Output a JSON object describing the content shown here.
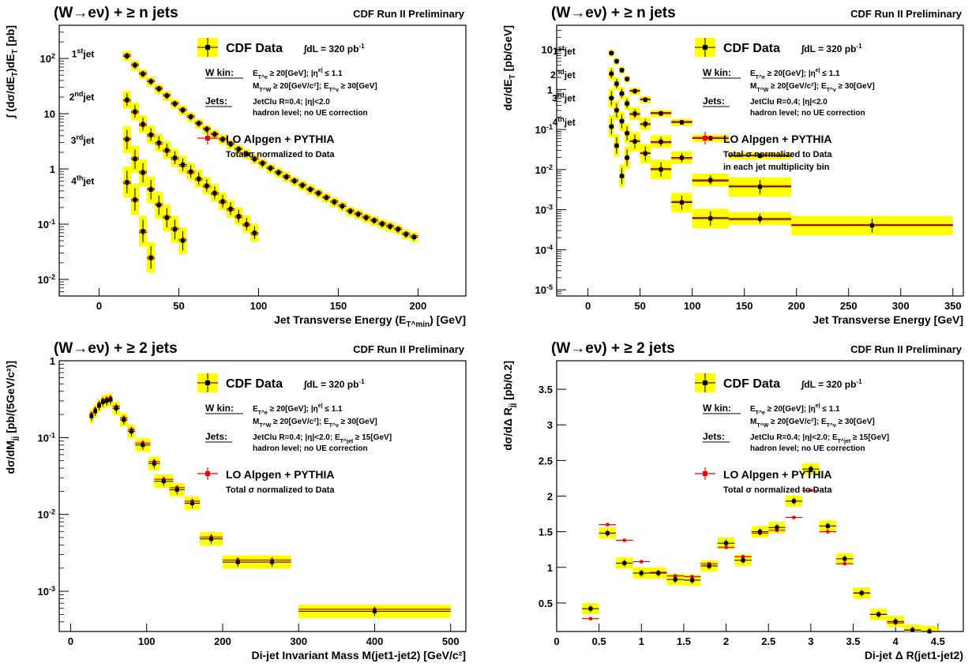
{
  "colors": {
    "band": "#ffff00",
    "data": "#000000",
    "mc": "#ee0000",
    "axis": "#000000"
  },
  "chart_data": [
    {
      "type": "scatter",
      "title": "(W→eν) + ≥ n jets",
      "header_right": "CDF Run II Preliminary",
      "xlabel": "Jet Transverse Energy (E_T^min) [GeV]",
      "ylabel": "∫ (dσ/dE_T)dE_T [pb]",
      "xlim": [
        -25,
        230
      ],
      "ylim": [
        0.005,
        400
      ],
      "log_y": true,
      "xticks": [
        0,
        50,
        100,
        150,
        200
      ],
      "yticks": [
        0.01,
        0.1,
        1,
        10,
        100
      ],
      "ytick_labels": [
        "10^-2",
        "10^-1",
        "1",
        "10",
        "10^2"
      ],
      "legend": {
        "data_label": "CDF Data",
        "lumi": "∫dL = 320 pb^-1",
        "wkin_title": "W kin:",
        "wkin_1": "E_T^e ≥ 20[GeV]; |η^e| ≤ 1.1",
        "wkin_2": "M_T^W ≥ 20[GeV/c²]; E_T^ν ≥ 30[GeV]",
        "jets_title": "Jets:",
        "jets_1": "JetClu R=0.4; |η|<2.0",
        "jets_2": "hadron level; no UE correction",
        "mc_label": "LO Alpgen + PYTHIA",
        "mc_note": "Total σ normalized to Data"
      },
      "annotations": [
        {
          "text": "1st jet",
          "x": -3,
          "y": 120
        },
        {
          "text": "2nd jet",
          "x": -3,
          "y": 20
        },
        {
          "text": "3rd jet",
          "x": -3,
          "y": 3.3
        },
        {
          "text": "4th jet",
          "x": -3,
          "y": 0.6
        }
      ],
      "series": [
        {
          "name": "1st jet",
          "x": [
            17.5,
            22.5,
            27.5,
            32.5,
            37.5,
            42.5,
            47.5,
            52.5,
            57.5,
            62.5,
            67.5,
            72.5,
            77.5,
            82.5,
            87.5,
            92.5,
            97.5,
            102.5,
            107.5,
            112.5,
            117.5,
            122.5,
            127.5,
            132.5,
            137.5,
            142.5,
            147.5,
            152.5,
            157.5,
            162.5,
            167.5,
            172.5,
            177.5,
            182.5,
            187.5,
            192.5,
            197.5
          ],
          "y": [
            110,
            75,
            52,
            38,
            28,
            21,
            15,
            11.5,
            8.7,
            6.6,
            5.2,
            4.2,
            3.4,
            2.8,
            2.25,
            1.85,
            1.5,
            1.25,
            1.02,
            0.85,
            0.71,
            0.6,
            0.5,
            0.42,
            0.36,
            0.3,
            0.25,
            0.21,
            0.17,
            0.15,
            0.13,
            0.115,
            0.1,
            0.09,
            0.08,
            0.065,
            0.058
          ],
          "band": 0.15
        },
        {
          "name": "2nd jet",
          "x": [
            17.5,
            22.5,
            27.5,
            32.5,
            37.5,
            42.5,
            47.5,
            52.5,
            57.5,
            62.5,
            67.5,
            72.5,
            77.5,
            82.5,
            87.5,
            92.5,
            97.5
          ],
          "y": [
            18,
            11,
            6.5,
            4.2,
            3.0,
            2.2,
            1.6,
            1.2,
            0.9,
            0.67,
            0.5,
            0.37,
            0.26,
            0.19,
            0.14,
            0.1,
            0.07
          ],
          "band": 0.3
        },
        {
          "name": "3rd jet",
          "x": [
            17.5,
            22.5,
            27.5,
            32.5,
            37.5,
            42.5,
            47.5,
            52.5
          ],
          "y": [
            3.4,
            1.5,
            0.85,
            0.42,
            0.22,
            0.13,
            0.08,
            0.05
          ],
          "band": 0.5
        },
        {
          "name": "4th jet",
          "x": [
            17.5,
            22.5,
            27.5,
            32.5
          ],
          "y": [
            0.58,
            0.28,
            0.075,
            0.025
          ],
          "band": 0.6
        }
      ]
    },
    {
      "type": "scatter",
      "title": "(W→eν) + ≥ n jets",
      "header_right": "CDF Run II Preliminary",
      "xlabel": "Jet Transverse Energy [GeV]",
      "ylabel": "dσ/dE_T [pb/GeV]",
      "xlim": [
        -30,
        360
      ],
      "ylim": [
        7e-06,
        40
      ],
      "log_y": true,
      "xticks": [
        0,
        50,
        100,
        150,
        200,
        250,
        300,
        350
      ],
      "yticks": [
        1e-05,
        0.0001,
        0.001,
        0.01,
        0.1,
        1,
        10
      ],
      "ytick_labels": [
        "10^-5",
        "10^-4",
        "10^-3",
        "10^-2",
        "10^-1",
        "1",
        "10"
      ],
      "legend": {
        "data_label": "CDF Data",
        "lumi": "∫dL = 320 pb^-1",
        "wkin_title": "W kin:",
        "wkin_1": "E_T^e ≥ 20[GeV]; |η^e| ≤ 1.1",
        "wkin_2": "M_T^W ≥ 20[GeV/c²]; E_T^ν ≥ 30[GeV]",
        "jets_title": "Jets:",
        "jets_1": "JetClu R=0.4; |η|<2.0",
        "jets_2": "hadron level; no UE correction",
        "mc_label": "LO Alpgen + PYTHIA",
        "mc_note": "Total σ normalized to Data",
        "mc_note2": "in each jet multiplicity bin"
      },
      "annotations": [
        {
          "text": "1st jet",
          "x": -12,
          "y": 9
        },
        {
          "text": "2nd jet",
          "x": -12,
          "y": 2.3
        },
        {
          "text": "3rd jet",
          "x": -12,
          "y": 0.6
        },
        {
          "text": "4th jet",
          "x": -12,
          "y": 0.15
        }
      ],
      "series": [
        {
          "name": "1st jet",
          "x": [
            22.5,
            27.5,
            32.5,
            37.5,
            45,
            55,
            70,
            90,
            117.5,
            165
          ],
          "xerr": [
            2.5,
            2.5,
            2.5,
            2.5,
            5,
            5,
            10,
            10,
            17.5,
            30
          ],
          "y": [
            8,
            5,
            3,
            1.8,
            0.9,
            0.55,
            0.25,
            0.15,
            0.06,
            0.022
          ],
          "band": 0.15
        },
        {
          "name": "2nd jet",
          "x": [
            22.5,
            27.5,
            32.5,
            37.5,
            45,
            55,
            70,
            90,
            117.5,
            165
          ],
          "xerr": [
            2.5,
            2.5,
            2.5,
            2.5,
            5,
            5,
            10,
            10,
            17.5,
            30
          ],
          "y": [
            2.5,
            1.4,
            0.8,
            0.45,
            0.25,
            0.14,
            0.05,
            0.02,
            0.0055,
            0.0006
          ],
          "band": 0.3
        },
        {
          "name": "3rd jet",
          "x": [
            22.5,
            27.5,
            32.5,
            37.5,
            45,
            55,
            70,
            90,
            117.5,
            165,
            272.5
          ],
          "xerr": [
            2.5,
            2.5,
            2.5,
            2.5,
            5,
            5,
            10,
            10,
            17.5,
            30,
            77.5
          ],
          "y": [
            0.6,
            0.3,
            0.16,
            0.08,
            0.05,
            0.025,
            0.01,
            0.0015,
            0.0006,
            0.0037,
            0.0004
          ],
          "band": 0.5
        },
        {
          "name": "4th jet",
          "x": [
            22.5,
            27.5,
            32.5,
            37.5
          ],
          "xerr": [
            2.5,
            2.5,
            2.5,
            2.5
          ],
          "y": [
            0.12,
            0.04,
            0.007,
            0.02
          ],
          "band": 0.6
        }
      ]
    },
    {
      "type": "scatter",
      "title": "(W→eν) + ≥ 2 jets",
      "header_right": "CDF Run II Preliminary",
      "xlabel": "Di-jet Invariant Mass M(jet1-jet2) [GeV/c²]",
      "ylabel": "dσ/dM_jj [pb/(5GeV/c²)]",
      "xlim": [
        -15,
        520
      ],
      "ylim": [
        0.0003,
        1
      ],
      "log_y": true,
      "xticks": [
        0,
        100,
        200,
        300,
        400,
        500
      ],
      "yticks": [
        0.001,
        0.01,
        0.1,
        1
      ],
      "ytick_labels": [
        "10^-3",
        "10^-2",
        "10^-1",
        "1"
      ],
      "legend": {
        "data_label": "CDF Data",
        "lumi": "∫dL = 320 pb^-1",
        "wkin_title": "W kin:",
        "wkin_1": "E_T^e ≥ 20[GeV]; |η^e| ≤ 1.1",
        "wkin_2": "M_T^W ≥ 20[GeV/c²]; E_T^ν ≥ 30[GeV]",
        "jets_title": "Jets:",
        "jets_1": "JetClu R=0.4; |η|<2.0; E_T^jet ≥ 15[GeV]",
        "jets_2": "hadron level; no UE correction",
        "mc_label": "LO Alpgen + PYTHIA",
        "mc_note": "Total σ normalized to Data"
      },
      "series": [
        {
          "name": "M_jj",
          "x": [
            27.5,
            32.5,
            37.5,
            42.5,
            47.5,
            52.5,
            60,
            70,
            80,
            95,
            110,
            122.5,
            140,
            160,
            185,
            220,
            265,
            400
          ],
          "xerr": [
            2.5,
            2.5,
            2.5,
            2.5,
            2.5,
            2.5,
            5,
            5,
            5,
            10,
            7.5,
            12.5,
            10,
            10,
            15,
            20,
            25,
            100
          ],
          "y": [
            0.19,
            0.22,
            0.26,
            0.29,
            0.3,
            0.31,
            0.24,
            0.17,
            0.12,
            0.08,
            0.046,
            0.027,
            0.021,
            0.014,
            0.0048,
            0.0024,
            0.0024,
            0.00055
          ],
          "band": 0.15
        }
      ]
    },
    {
      "type": "scatter",
      "title": "(W→eν) + ≥ 2 jets",
      "header_right": "CDF Run II Preliminary",
      "xlabel": "Di-jet Δ R(jet1-jet2)",
      "ylabel": "dσ/dΔ R_jj [pb/0.2]",
      "xlim": [
        0,
        4.8
      ],
      "ylim": [
        0.1,
        3.9
      ],
      "log_y": false,
      "xticks": [
        0,
        0.5,
        1,
        1.5,
        2,
        2.5,
        3,
        3.5,
        4,
        4.5
      ],
      "yticks": [
        0.5,
        1,
        1.5,
        2,
        2.5,
        3,
        3.5
      ],
      "ytick_labels": [
        "0.5",
        "1",
        "1.5",
        "2",
        "2.5",
        "3",
        "3.5"
      ],
      "legend": {
        "data_label": "CDF Data",
        "lumi": "∫dL = 320 pb^-1",
        "wkin_title": "W kin:",
        "wkin_1": "E_T^e ≥ 20[GeV]; |η^e| ≤ 1.1",
        "wkin_2": "M_T^W ≥ 20[GeV/c²]; E_T^ν ≥ 30[GeV]",
        "jets_title": "Jets:",
        "jets_1": "JetClu R=0.4; |η|<2.0; E_T^jet ≥ 15[GeV]",
        "jets_2": "hadron level; no UE correction",
        "mc_label": "LO Alpgen + PYTHIA",
        "mc_note": "Total σ normalized to Data"
      },
      "series": [
        {
          "name": "Δ R",
          "x": [
            0.4,
            0.6,
            0.8,
            1.0,
            1.2,
            1.4,
            1.6,
            1.8,
            2.0,
            2.2,
            2.4,
            2.6,
            2.8,
            3.0,
            3.2,
            3.4,
            3.6,
            3.8,
            4.0,
            4.2,
            4.4
          ],
          "xerr": [
            0.1,
            0.1,
            0.1,
            0.1,
            0.1,
            0.1,
            0.1,
            0.1,
            0.1,
            0.1,
            0.1,
            0.1,
            0.1,
            0.1,
            0.1,
            0.1,
            0.1,
            0.1,
            0.1,
            0.1,
            0.1
          ],
          "y": [
            0.42,
            1.48,
            1.06,
            0.92,
            0.92,
            0.83,
            0.82,
            1.02,
            1.34,
            1.1,
            1.5,
            1.56,
            1.93,
            2.38,
            1.58,
            1.12,
            0.64,
            0.34,
            0.24,
            0.12,
            0.1
          ],
          "mc": [
            0.28,
            1.6,
            1.38,
            1.08,
            0.93,
            0.88,
            0.87,
            1.05,
            1.28,
            1.15,
            1.48,
            1.52,
            1.7,
            2.08,
            1.5,
            1.05,
            0.64,
            0.34,
            0.22,
            0.12,
            0.1
          ],
          "band": 0.08
        }
      ]
    }
  ]
}
